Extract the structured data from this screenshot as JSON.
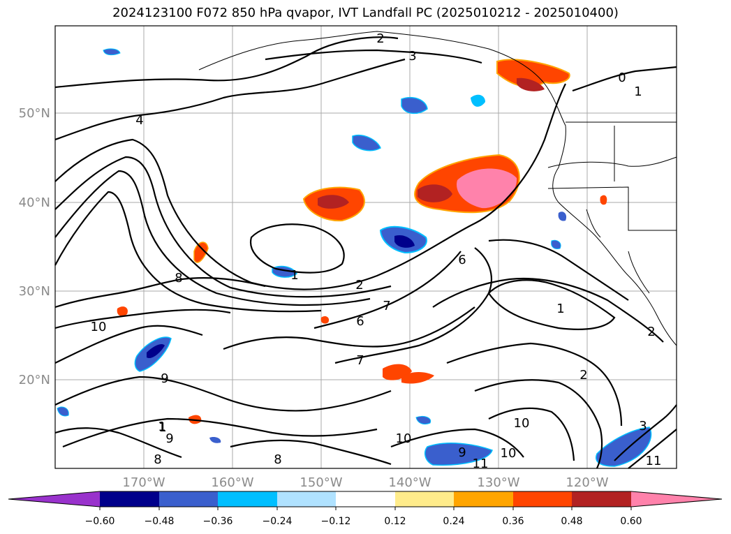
{
  "title": "2024123100 F072 850 hPa qvapor, IVT Landfall PC (2025010212 - 2025010400)",
  "map": {
    "lon_ticks": [
      "170°W",
      "160°W",
      "150°W",
      "140°W",
      "130°W",
      "120°W"
    ],
    "lat_ticks": [
      "50°N",
      "40°N",
      "30°N",
      "20°N"
    ],
    "contour_labels": [
      "2",
      "3",
      "4",
      "0",
      "1",
      "1",
      "6",
      "2",
      "7",
      "6",
      "7",
      "10",
      "9",
      "8",
      "9",
      "1",
      "9",
      "8",
      "8",
      "10",
      "10",
      "11",
      "1",
      "2",
      "2",
      "10",
      "11",
      "3",
      "1"
    ]
  },
  "colorbar": {
    "ticks": [
      "−0.60",
      "−0.48",
      "−0.36",
      "−0.24",
      "−0.12",
      "0.12",
      "0.24",
      "0.36",
      "0.48",
      "0.60"
    ],
    "colors": [
      "#9932cc",
      "#00008b",
      "#3a5fcd",
      "#00bfff",
      "#b0e2ff",
      "#ffffff",
      "#ffec8b",
      "#ffa500",
      "#ff4500",
      "#b22222",
      "#ff82ab"
    ]
  }
}
